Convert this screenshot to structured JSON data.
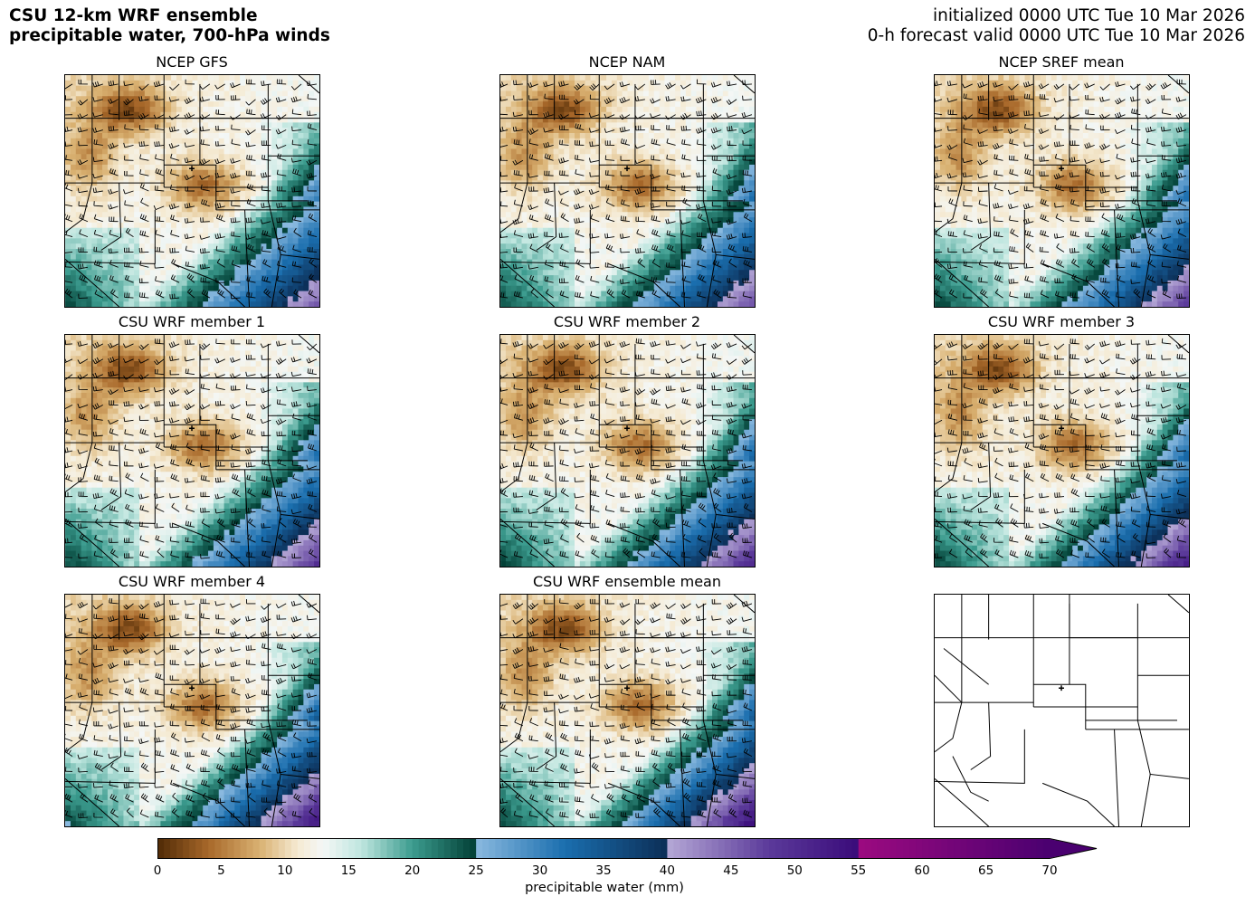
{
  "title": {
    "line1": "CSU 12-km WRF ensemble",
    "line2": "precipitable water, 700-hPa winds"
  },
  "init": {
    "line1": "initialized 0000 UTC Tue 10 Mar 2026",
    "line2": "0-h forecast valid 0000 UTC Tue 10 Mar 2026"
  },
  "panels": [
    {
      "title": "NCEP GFS",
      "variant": 0
    },
    {
      "title": "NCEP NAM",
      "variant": 1
    },
    {
      "title": "NCEP SREF mean",
      "variant": 2
    },
    {
      "title": "CSU WRF member 1",
      "variant": 3
    },
    {
      "title": "CSU WRF member 2",
      "variant": 4
    },
    {
      "title": "CSU WRF member 3",
      "variant": 5
    },
    {
      "title": "CSU WRF member 4",
      "variant": 6
    },
    {
      "title": "CSU WRF ensemble mean",
      "variant": 7
    },
    {
      "title": "",
      "variant": -1
    }
  ],
  "colorbar": {
    "label": "precipitable water (mm)",
    "ticks": [
      "0",
      "5",
      "10",
      "15",
      "20",
      "25",
      "30",
      "35",
      "40",
      "45",
      "50",
      "55",
      "60",
      "65",
      "70"
    ],
    "min": 0,
    "max": 70,
    "extend": "max",
    "colors": {
      "dry_dark": "#4f2a06",
      "dry": "#a8682a",
      "tan": "#d9b171",
      "cream": "#f5ead2",
      "white": "#f4f7f6",
      "teal_light": "#bfe6df",
      "teal": "#3c9c8f",
      "teal_dark": "#013e34",
      "blue_light": "#8ab9df",
      "blue": "#1a6eae",
      "blue_dark": "#0c2e56",
      "purple_light": "#b5a8d6",
      "purple": "#5b3a9a",
      "purple_dark": "#3a0b7a",
      "magenta": "#9c0a80",
      "violet_dark": "#4a0070"
    }
  }
}
